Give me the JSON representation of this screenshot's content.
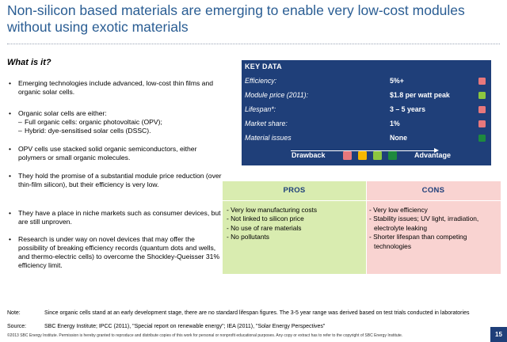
{
  "title": "Non-silicon based materials are emerging to enable very low-cost modules without using exotic materials",
  "what_is_it": {
    "heading": "What is it?",
    "bullets": [
      {
        "text": "Emerging technologies include advanced, low-cost thin films and organic solar cells."
      },
      {
        "text": "Organic solar cells are either:",
        "subs": [
          "Full organic cells: organic photovoltaic (OPV);",
          "Hybrid: dye-sensitised solar cells (DSSC)."
        ]
      },
      {
        "text": "OPV cells use stacked solid organic semiconductors, either polymers or small organic molecules."
      },
      {
        "text": "They hold the promise of a substantial module price reduction (over thin-film silicon), but their efficiency is very low."
      },
      {
        "text": "They have a place in niche markets such as consumer devices, but are still unproven."
      },
      {
        "text": "Research is under way on novel devices that may offer the possibility of breaking efficiency records (quantum dots and wells, and thermo-electric cells) to overcome the Shockley-Queisser 31% efficiency limit."
      }
    ]
  },
  "key_data": {
    "header": "KEY DATA",
    "rows": [
      {
        "label": "Efficiency:",
        "value": "5%+",
        "rating_color": "#e8787c"
      },
      {
        "label": "Module price (2011):",
        "value": "$1.8 per watt peak",
        "rating_color": "#8cc63f"
      },
      {
        "label": "Lifespan*:",
        "value": "3 – 5 years",
        "rating_color": "#e8787c"
      },
      {
        "label": "Market share:",
        "value": "1%",
        "rating_color": "#e8787c"
      },
      {
        "label": "Material issues",
        "value": "None",
        "rating_color": "#1e8a3e"
      }
    ],
    "legend": {
      "left_label": "Drawback",
      "right_label": "Advantage",
      "scale_colors": [
        "#e8787c",
        "#f5b800",
        "#8cc63f",
        "#1e8a3e"
      ]
    }
  },
  "pros": {
    "heading": "PROS",
    "items": [
      "- Very low manufacturing costs",
      "- Not linked to silicon price",
      "- No use of rare materials",
      "- No pollutants"
    ]
  },
  "cons": {
    "heading": "CONS",
    "items": [
      "- Very low efficiency",
      "- Stability issues; UV light, irradiation, electrolyte leaking",
      "- Shorter lifespan than competing technologies"
    ]
  },
  "footer": {
    "note_label": "Note:",
    "note_text": "Since organic cells stand at an early development stage, there are no standard lifespan figures. The 3-5 year range was derived based on test trials conducted in laboratories",
    "source_label": "Source:",
    "source_text": "SBC Energy Institute; IPCC (2011), \"Special report on renewable energy\"; IEA (2011), \"Solar Energy Perspectives\"",
    "copyright": "©2013 SBC Energy Institute. Permission is hereby granted to reproduce and distribute copies of this work for personal or nonprofit educational purposes. Any copy or extract has to refer to the copyright of SBC Energy Institute.",
    "page_number": "15"
  }
}
